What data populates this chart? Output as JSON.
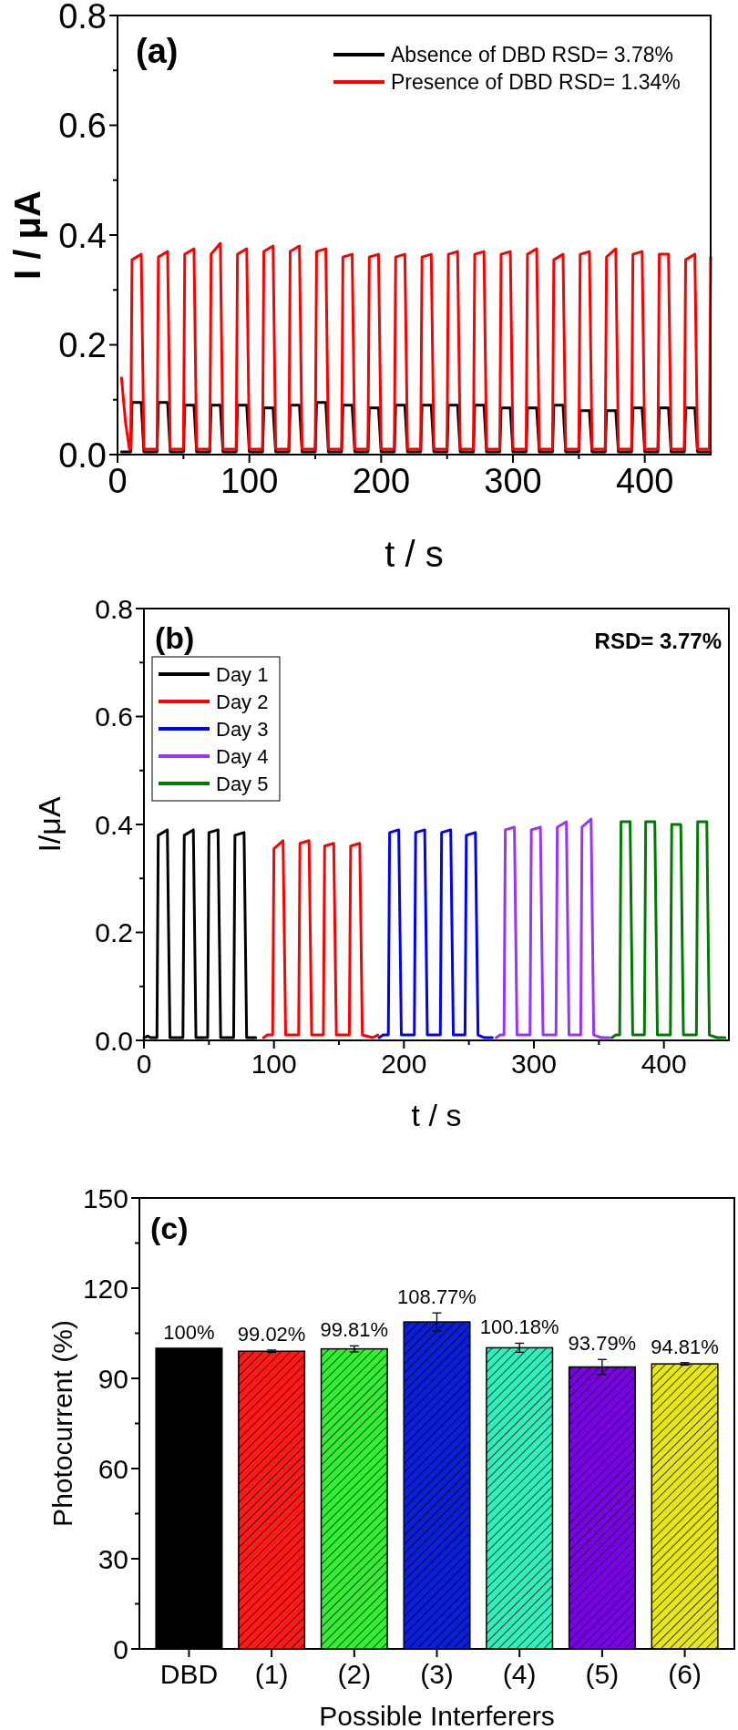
{
  "chart_data": [
    {
      "type": "line",
      "xlabel": "t / s",
      "ylabel": "I / μA",
      "xlim": [
        0,
        450
      ],
      "ylim": [
        0,
        0.8
      ],
      "xticks": [
        0,
        {
          "value": 50,
          "label": null
        },
        100,
        {
          "value": 150,
          "label": null
        },
        200,
        {
          "value": 250,
          "label": null
        },
        300,
        {
          "value": 350,
          "label": null
        },
        400
      ],
      "yticks": [
        {
          "value": 0,
          "label": "0.0"
        },
        {
          "value": 0.1,
          "label": null
        },
        0.2,
        {
          "value": 0.3,
          "label": null
        },
        0.4,
        {
          "value": 0.5,
          "label": null
        },
        0.6,
        {
          "value": 0.7,
          "label": null
        },
        0.8
      ],
      "legend": "top right",
      "line_style": "solid",
      "annotations": [
        "(a)"
      ],
      "x": [
        3,
        6,
        9,
        10,
        11,
        18,
        20,
        30,
        31,
        38,
        40,
        50,
        51,
        58,
        60,
        70,
        71,
        78,
        80,
        90,
        91,
        98,
        100,
        110,
        111,
        118,
        120,
        130,
        131,
        138,
        140,
        150,
        151,
        158,
        160,
        170,
        171,
        178,
        180,
        190,
        191,
        198,
        200,
        210,
        211,
        218,
        220,
        230,
        231,
        238,
        240,
        250,
        251,
        258,
        260,
        270,
        271,
        278,
        280,
        290,
        291,
        298,
        300,
        310,
        311,
        318,
        320,
        330,
        331,
        338,
        340,
        350,
        351,
        358,
        360,
        370,
        371,
        378,
        380,
        390,
        391,
        398,
        400,
        410,
        411,
        418,
        420,
        430,
        431,
        438,
        440,
        449,
        450
      ],
      "series": [
        {
          "name": "Absence  of DBD RSD= 3.78%",
          "color": "#000000",
          "values": [
            0.005,
            0.005,
            0.005,
            0.005,
            0.095,
            0.095,
            0.005,
            0.005,
            0.095,
            0.095,
            0.005,
            0.005,
            0.09,
            0.09,
            0.005,
            0.005,
            0.09,
            0.09,
            0.005,
            0.005,
            0.09,
            0.09,
            0.005,
            0.005,
            0.085,
            0.085,
            0.005,
            0.005,
            0.09,
            0.09,
            0.005,
            0.005,
            0.095,
            0.095,
            0.005,
            0.005,
            0.09,
            0.09,
            0.005,
            0.005,
            0.085,
            0.085,
            0.005,
            0.005,
            0.09,
            0.09,
            0.005,
            0.005,
            0.09,
            0.09,
            0.005,
            0.005,
            0.09,
            0.09,
            0.005,
            0.005,
            0.09,
            0.09,
            0.005,
            0.005,
            0.085,
            0.085,
            0.005,
            0.005,
            0.085,
            0.085,
            0.005,
            0.005,
            0.09,
            0.09,
            0.005,
            0.005,
            0.08,
            0.08,
            0.005,
            0.005,
            0.08,
            0.08,
            0.005,
            0.005,
            0.085,
            0.085,
            0.005,
            0.005,
            0.085,
            0.085,
            0.005,
            0.005,
            0.085,
            0.085,
            0.005,
            0.005,
            0.005
          ]
        },
        {
          "name": "Presence of DBD RSD= 1.34%",
          "color": "#ff0000",
          "values": [
            0.14,
            0.06,
            0.01,
            0.01,
            0.355,
            0.365,
            0.01,
            0.01,
            0.36,
            0.37,
            0.01,
            0.01,
            0.365,
            0.375,
            0.01,
            0.01,
            0.365,
            0.385,
            0.01,
            0.01,
            0.365,
            0.375,
            0.01,
            0.01,
            0.37,
            0.38,
            0.01,
            0.01,
            0.37,
            0.38,
            0.01,
            0.01,
            0.37,
            0.375,
            0.01,
            0.01,
            0.36,
            0.365,
            0.01,
            0.01,
            0.36,
            0.365,
            0.01,
            0.01,
            0.36,
            0.365,
            0.01,
            0.01,
            0.36,
            0.365,
            0.01,
            0.01,
            0.365,
            0.37,
            0.01,
            0.01,
            0.365,
            0.37,
            0.01,
            0.01,
            0.365,
            0.37,
            0.01,
            0.01,
            0.365,
            0.375,
            0.01,
            0.01,
            0.355,
            0.365,
            0.01,
            0.01,
            0.365,
            0.37,
            0.01,
            0.01,
            0.36,
            0.375,
            0.01,
            0.01,
            0.365,
            0.37,
            0.01,
            0.01,
            0.365,
            0.365,
            0.01,
            0.01,
            0.355,
            0.365,
            0.01,
            0.01,
            0.36
          ]
        }
      ]
    },
    {
      "type": "line",
      "xlabel": "t / s",
      "ylabel": "I/μA",
      "xlim": [
        0,
        450
      ],
      "ylim": [
        0,
        0.8
      ],
      "xticks": [
        0,
        {
          "value": 50,
          "label": null
        },
        100,
        {
          "value": 150,
          "label": null
        },
        200,
        {
          "value": 250,
          "label": null
        },
        300,
        {
          "value": 350,
          "label": null
        },
        400
      ],
      "yticks": [
        {
          "value": 0,
          "label": "0.0"
        },
        {
          "value": 0.1,
          "label": null
        },
        0.2,
        {
          "value": 0.3,
          "label": null
        },
        0.4,
        {
          "value": 0.5,
          "label": null
        },
        0.6,
        {
          "value": 0.7,
          "label": null
        },
        0.8
      ],
      "legend": "top left",
      "line_style": "solid",
      "annotations": [
        "(b)",
        "RSD= 3.77%"
      ],
      "series": [
        {
          "name": "Day 1",
          "color": "#000000",
          "x": [
            0,
            3,
            5,
            10,
            11,
            18,
            20,
            30,
            31,
            38,
            40,
            49,
            50,
            57,
            59,
            69,
            70,
            77,
            79,
            86
          ],
          "values": [
            0.005,
            0.008,
            0.005,
            0.005,
            0.38,
            0.39,
            0.005,
            0.005,
            0.38,
            0.39,
            0.005,
            0.005,
            0.385,
            0.39,
            0.005,
            0.005,
            0.38,
            0.385,
            0.005,
            0.005
          ]
        },
        {
          "name": "Day 2",
          "color": "#ff0000",
          "x": [
            92,
            95,
            99,
            100,
            107,
            109,
            119,
            120,
            127,
            129,
            138,
            139,
            146,
            148,
            158,
            159,
            166,
            168,
            176,
            180
          ],
          "values": [
            0.005,
            0.01,
            0.01,
            0.355,
            0.37,
            0.01,
            0.01,
            0.365,
            0.37,
            0.01,
            0.01,
            0.36,
            0.365,
            0.01,
            0.01,
            0.36,
            0.365,
            0.01,
            0.005,
            0.01
          ]
        },
        {
          "name": "Day 3",
          "color": "#0000ff",
          "x": [
            181,
            184,
            188,
            189,
            196,
            198,
            208,
            209,
            216,
            218,
            228,
            229,
            236,
            238,
            247,
            248,
            255,
            257,
            262,
            268
          ],
          "values": [
            0.005,
            0.01,
            0.01,
            0.385,
            0.39,
            0.01,
            0.01,
            0.385,
            0.39,
            0.01,
            0.01,
            0.385,
            0.39,
            0.01,
            0.01,
            0.38,
            0.385,
            0.01,
            0.005,
            0.005
          ]
        },
        {
          "name": "Day 4",
          "color": "#9933ff",
          "x": [
            271,
            274,
            277,
            278,
            285,
            287,
            297,
            298,
            305,
            307,
            317,
            318,
            325,
            327,
            336,
            337,
            344,
            346,
            352,
            358
          ],
          "values": [
            0.005,
            0.01,
            0.01,
            0.39,
            0.395,
            0.01,
            0.01,
            0.39,
            0.395,
            0.01,
            0.01,
            0.395,
            0.405,
            0.01,
            0.01,
            0.395,
            0.41,
            0.01,
            0.005,
            0.005
          ]
        },
        {
          "name": "Day 5",
          "color": "#007a00",
          "x": [
            360,
            363,
            366,
            367,
            374,
            376,
            385,
            386,
            393,
            395,
            405,
            406,
            413,
            415,
            425,
            426,
            433,
            435,
            441,
            447
          ],
          "values": [
            0.005,
            0.01,
            0.01,
            0.405,
            0.405,
            0.01,
            0.01,
            0.405,
            0.405,
            0.01,
            0.01,
            0.4,
            0.4,
            0.01,
            0.01,
            0.405,
            0.405,
            0.01,
            0.005,
            0.005
          ]
        }
      ]
    },
    {
      "type": "bar",
      "xlabel": "Possible Interferers",
      "ylabel": "Photocurrent (%)",
      "ylim": [
        0,
        150
      ],
      "yticks": [
        0,
        {
          "value": 15,
          "label": null
        },
        30,
        {
          "value": 45,
          "label": null
        },
        60,
        {
          "value": 75,
          "label": null
        },
        90,
        {
          "value": 105,
          "label": null
        },
        120,
        {
          "value": 135,
          "label": null
        },
        150
      ],
      "categories": [
        "DBD",
        "(1)",
        "(2)",
        "(3)",
        "(4)",
        "(5)",
        "(6)"
      ],
      "values": [
        100,
        99.02,
        99.81,
        108.77,
        100.18,
        93.79,
        94.81
      ],
      "colors": [
        "#000000",
        "#ff1a1a",
        "#33ee33",
        "#0a1fd6",
        "#33eebb",
        "#7a00e6",
        "#e6e61a"
      ],
      "errors": [
        null,
        0.4,
        1,
        3,
        1.5,
        2.5,
        0.4
      ],
      "value_labels": [
        "100%",
        "99.02%",
        "99.81%",
        "108.77%",
        "100.18%",
        "93.79%",
        "94.81%"
      ],
      "annotations": [
        "(c)"
      ]
    }
  ]
}
